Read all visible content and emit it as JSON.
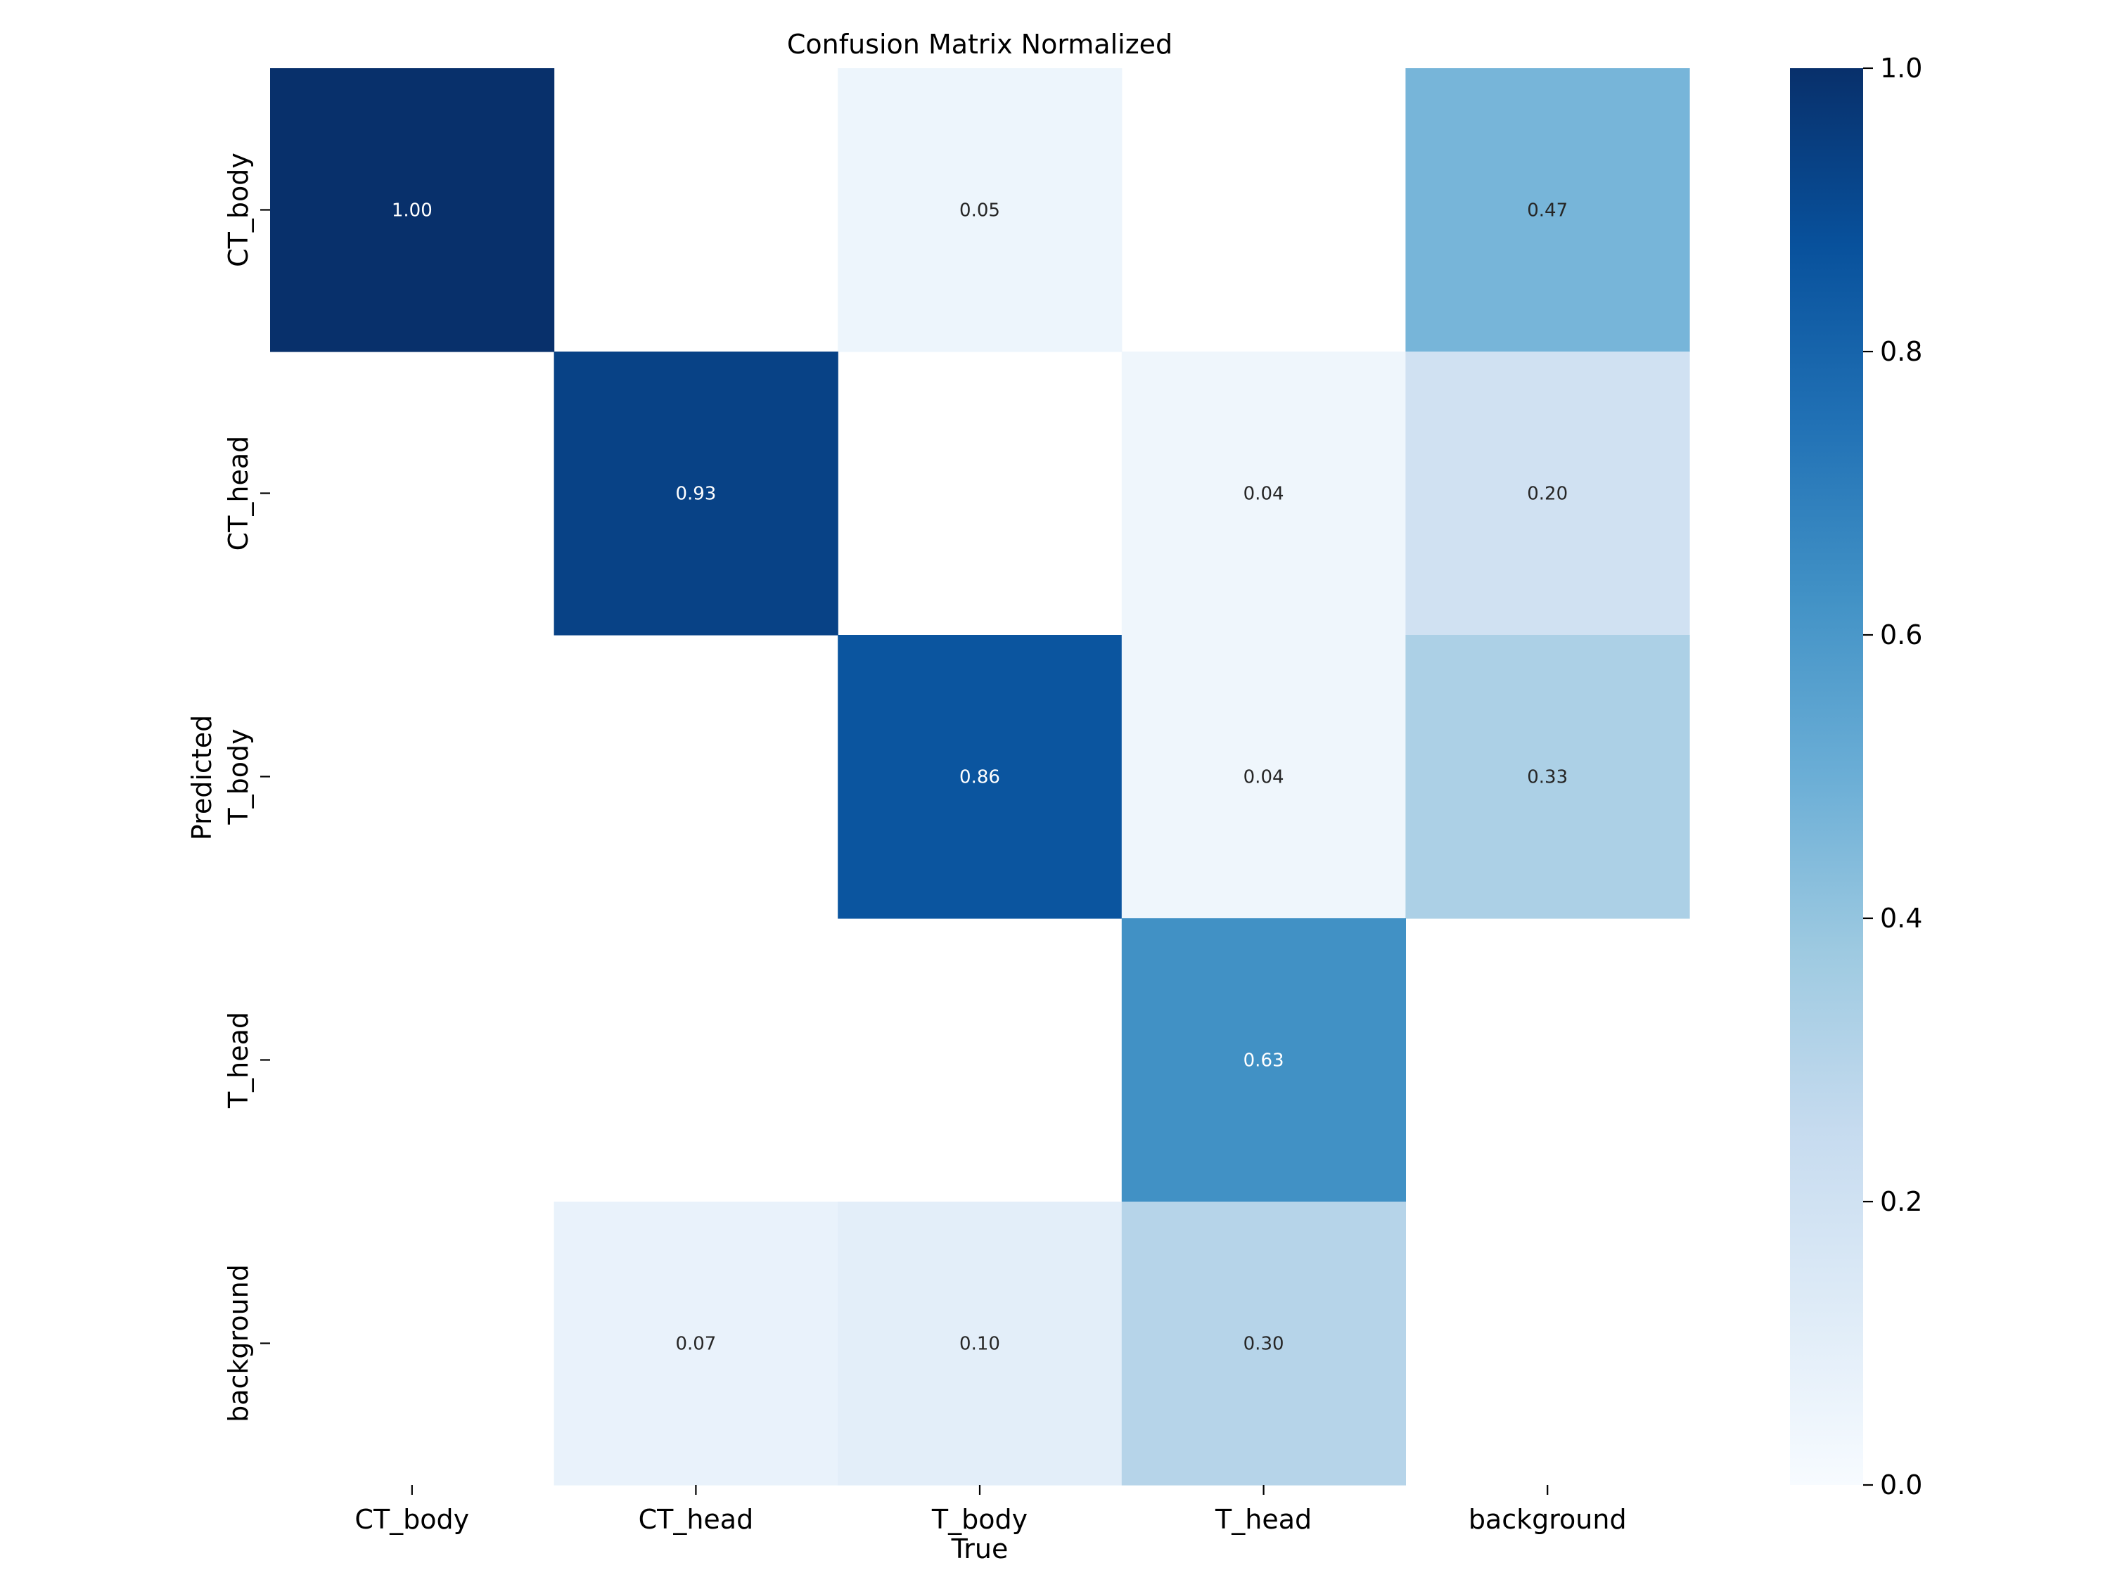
{
  "chart_data": {
    "type": "heatmap",
    "title": "Confusion Matrix Normalized",
    "xlabel": "True",
    "ylabel": "Predicted",
    "x_categories": [
      "CT_body",
      "CT_head",
      "T_body",
      "T_head",
      "background"
    ],
    "y_categories": [
      "CT_body",
      "CT_head",
      "T_body",
      "T_head",
      "background"
    ],
    "values": [
      [
        1.0,
        null,
        0.05,
        null,
        0.47
      ],
      [
        null,
        0.93,
        null,
        0.04,
        0.2
      ],
      [
        null,
        null,
        0.86,
        0.04,
        0.33
      ],
      [
        null,
        null,
        null,
        0.63,
        null
      ],
      [
        null,
        0.07,
        0.1,
        0.3,
        null
      ]
    ],
    "value_format": "0.00",
    "colormap": "Blues",
    "colorbar": {
      "range": [
        0.0,
        1.0
      ],
      "ticks": [
        "0.0",
        "0.2",
        "0.4",
        "0.6",
        "0.8",
        "1.0"
      ],
      "position": "right"
    },
    "grid": false
  }
}
